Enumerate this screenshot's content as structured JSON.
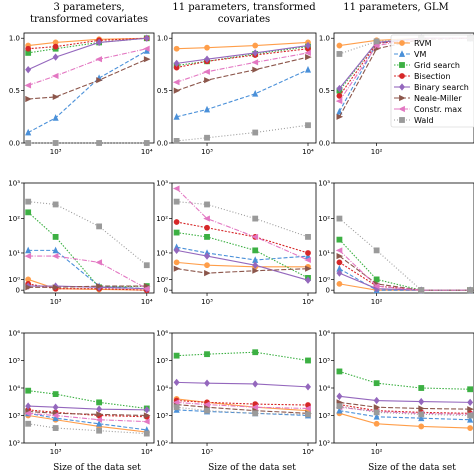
{
  "chart_data": {
    "type": "line",
    "x_axis_label": "Size of the data set",
    "column_titles": [
      [
        "3 parameters,",
        "transformed covariates"
      ],
      [
        "11 parameters, transformed",
        "covariates"
      ],
      [
        "11 parameters, GLM"
      ]
    ],
    "series_styles": [
      {
        "name": "RVM",
        "color": "#ff9e4a",
        "marker": "circle",
        "dash": ""
      },
      {
        "name": "VM",
        "color": "#4a90d9",
        "marker": "triangle",
        "dash": "4,2"
      },
      {
        "name": "Grid search",
        "color": "#3cb043",
        "marker": "square",
        "dash": "1.5,1.5"
      },
      {
        "name": "Bisection",
        "color": "#d62728",
        "marker": "circle",
        "dash": "2,1.5"
      },
      {
        "name": "Binary search",
        "color": "#9467bd",
        "marker": "diamond",
        "dash": ""
      },
      {
        "name": "Neale-Miller",
        "color": "#8c564b",
        "marker": "tri-right",
        "dash": "5,2"
      },
      {
        "name": "Constr. max",
        "color": "#e377c2",
        "marker": "tri-left",
        "dash": "5,1.5,1,1.5"
      },
      {
        "name": "Wald",
        "color": "#9a9a9a",
        "marker": "square-x",
        "dash": "1,2"
      }
    ],
    "legend": {
      "placement": "right",
      "entries": [
        "RVM",
        "VM",
        "Grid search",
        "Bisection",
        "Binary search",
        "Neale-Miller",
        "Constr. max",
        "Wald"
      ]
    },
    "panels": [
      {
        "row": 0,
        "col": 0,
        "yscale": "linear",
        "ylim": [
          0,
          1.05
        ],
        "xlim": [
          450,
          12000
        ],
        "yticks": [
          0,
          0.5,
          1.0
        ],
        "ytick_labels": [
          "0.0",
          "0.5",
          "1.0"
        ],
        "xticks": [
          1000,
          10000
        ],
        "xtick_labels": [
          "10³",
          "10⁴"
        ],
        "x": [
          500,
          1000,
          3000,
          10000
        ],
        "series": [
          {
            "name": "RVM",
            "values": [
              0.93,
              0.96,
              0.99,
              1.0
            ]
          },
          {
            "name": "VM",
            "values": [
              0.1,
              0.24,
              0.62,
              0.88
            ]
          },
          {
            "name": "Grid search",
            "values": [
              0.86,
              0.9,
              0.96,
              1.0
            ]
          },
          {
            "name": "Bisection",
            "values": [
              0.9,
              0.92,
              0.98,
              1.0
            ]
          },
          {
            "name": "Binary search",
            "values": [
              0.7,
              0.82,
              0.96,
              1.0
            ]
          },
          {
            "name": "Neale-Miller",
            "values": [
              0.42,
              0.44,
              0.6,
              0.8
            ]
          },
          {
            "name": "Constr. max",
            "values": [
              0.55,
              0.64,
              0.8,
              0.9
            ]
          },
          {
            "name": "Wald",
            "values": [
              0.0,
              0.0,
              0.0,
              0.0
            ]
          }
        ]
      },
      {
        "row": 0,
        "col": 1,
        "yscale": "linear",
        "ylim": [
          0,
          1.05
        ],
        "xlim": [
          450,
          12000
        ],
        "yticks": [
          0,
          0.5,
          1.0
        ],
        "ytick_labels": [
          "0.0",
          "0.5",
          "1.0"
        ],
        "xticks": [
          1000,
          10000
        ],
        "xtick_labels": [
          "10³",
          "10⁴"
        ],
        "x": [
          500,
          1000,
          3000,
          10000
        ],
        "series": [
          {
            "name": "RVM",
            "values": [
              0.9,
              0.91,
              0.93,
              0.96
            ]
          },
          {
            "name": "VM",
            "values": [
              0.25,
              0.32,
              0.47,
              0.7
            ]
          },
          {
            "name": "Grid search",
            "values": [
              0.74,
              0.78,
              0.85,
              0.92
            ]
          },
          {
            "name": "Bisection",
            "values": [
              0.72,
              0.78,
              0.84,
              0.9
            ]
          },
          {
            "name": "Binary search",
            "values": [
              0.76,
              0.8,
              0.86,
              0.93
            ]
          },
          {
            "name": "Neale-Miller",
            "values": [
              0.5,
              0.6,
              0.7,
              0.82
            ]
          },
          {
            "name": "Constr. max",
            "values": [
              0.58,
              0.68,
              0.77,
              0.86
            ]
          },
          {
            "name": "Wald",
            "values": [
              0.02,
              0.05,
              0.1,
              0.17
            ]
          }
        ]
      },
      {
        "row": 0,
        "col": 2,
        "yscale": "linear",
        "ylim": [
          0,
          1.05
        ],
        "xlim": [
          35,
          1100
        ],
        "yticks": [
          0,
          0.5,
          1.0
        ],
        "ytick_labels": [
          "0.0",
          "0.5",
          "1.0"
        ],
        "xticks": [
          100
        ],
        "xtick_labels": [
          "10²"
        ],
        "x": [
          40,
          100,
          300,
          1000
        ],
        "series": [
          {
            "name": "RVM",
            "values": [
              0.93,
              0.98,
              1.0,
              1.0
            ]
          },
          {
            "name": "VM",
            "values": [
              0.3,
              0.95,
              1.0,
              1.0
            ]
          },
          {
            "name": "Grid search",
            "values": [
              0.5,
              0.96,
              1.0,
              1.0
            ]
          },
          {
            "name": "Bisection",
            "values": [
              0.45,
              0.95,
              1.0,
              1.0
            ]
          },
          {
            "name": "Binary search",
            "values": [
              0.52,
              0.96,
              1.0,
              1.0
            ]
          },
          {
            "name": "Neale-Miller",
            "values": [
              0.25,
              0.9,
              0.99,
              1.0
            ]
          },
          {
            "name": "Constr. max",
            "values": [
              0.4,
              0.93,
              1.0,
              1.0
            ]
          },
          {
            "name": "Wald",
            "values": [
              0.85,
              0.97,
              1.0,
              1.0
            ]
          }
        ]
      },
      {
        "row": 1,
        "col": 0,
        "yscale": "symlog",
        "ylim": [
          -0.2,
          1000
        ],
        "xlim": [
          450,
          12000
        ],
        "yticks": [
          0,
          1,
          10,
          100,
          1000
        ],
        "ytick_labels": [
          "0",
          "10⁰",
          "10¹",
          "10²",
          "10³"
        ],
        "xticks": [
          1000,
          10000
        ],
        "xtick_labels": [
          "10³",
          "10⁴"
        ],
        "x": [
          500,
          1000,
          3000,
          10000
        ],
        "series": [
          {
            "name": "RVM",
            "values": [
              1.0,
              0.1,
              0.05,
              0.0
            ]
          },
          {
            "name": "VM",
            "values": [
              12,
              12,
              0.3,
              0.1
            ]
          },
          {
            "name": "Grid search",
            "values": [
              150,
              30,
              0.2,
              0.3
            ]
          },
          {
            "name": "Bisection",
            "values": [
              0.5,
              0.1,
              0.1,
              0.0
            ]
          },
          {
            "name": "Binary search",
            "values": [
              0.3,
              0.3,
              0.2,
              0.1
            ]
          },
          {
            "name": "Neale-Miller",
            "values": [
              0.2,
              0.2,
              0.3,
              0.3
            ]
          },
          {
            "name": "Constr. max",
            "values": [
              8,
              8,
              5,
              0.1
            ]
          },
          {
            "name": "Wald",
            "values": [
              300,
              250,
              60,
              4
            ]
          }
        ]
      },
      {
        "row": 1,
        "col": 1,
        "yscale": "symlog",
        "ylim": [
          -0.2,
          1000
        ],
        "xlim": [
          450,
          12000
        ],
        "yticks": [
          0,
          1,
          10,
          100,
          1000
        ],
        "ytick_labels": [
          "0",
          "10⁰",
          "10¹",
          "10²",
          "10³"
        ],
        "xticks": [
          1000,
          10000
        ],
        "xtick_labels": [
          "10³",
          "10⁴"
        ],
        "x": [
          500,
          1000,
          3000,
          10000
        ],
        "series": [
          {
            "name": "RVM",
            "values": [
              5,
              4,
              3.5,
              3.5
            ]
          },
          {
            "name": "VM",
            "values": [
              15,
              10,
              6,
              8
            ]
          },
          {
            "name": "Grid search",
            "values": [
              40,
              30,
              12,
              1.2
            ]
          },
          {
            "name": "Bisection",
            "values": [
              80,
              55,
              30,
              10
            ]
          },
          {
            "name": "Binary search",
            "values": [
              12,
              8,
              4,
              0.9
            ]
          },
          {
            "name": "Neale-Miller",
            "values": [
              3,
              2,
              2.5,
              3
            ]
          },
          {
            "name": "Constr. max",
            "values": [
              700,
              100,
              30,
              6
            ]
          },
          {
            "name": "Wald",
            "values": [
              300,
              250,
              100,
              30
            ]
          }
        ]
      },
      {
        "row": 1,
        "col": 2,
        "yscale": "symlog",
        "ylim": [
          -0.2,
          1000
        ],
        "xlim": [
          35,
          1100
        ],
        "yticks": [
          0,
          1,
          10,
          100,
          1000
        ],
        "ytick_labels": [
          "0",
          "10⁰",
          "10¹",
          "10²",
          "10³"
        ],
        "xticks": [
          100
        ],
        "xtick_labels": [
          "10²"
        ],
        "x": [
          40,
          100,
          300,
          1000
        ],
        "series": [
          {
            "name": "RVM",
            "values": [
              0.5,
              0.0,
              0.0,
              0.0
            ]
          },
          {
            "name": "VM",
            "values": [
              3,
              0.0,
              0.0,
              0.0
            ]
          },
          {
            "name": "Grid search",
            "values": [
              25,
              1,
              0.0,
              0.0
            ]
          },
          {
            "name": "Bisection",
            "values": [
              5,
              0.3,
              0.0,
              0.0
            ]
          },
          {
            "name": "Binary search",
            "values": [
              2,
              0.1,
              0.0,
              0.0
            ]
          },
          {
            "name": "Neale-Miller",
            "values": [
              8,
              0.5,
              0.0,
              0.0
            ]
          },
          {
            "name": "Constr. max",
            "values": [
              12,
              0.3,
              0.0,
              0.0
            ]
          },
          {
            "name": "Wald",
            "values": [
              100,
              12,
              0.0,
              0.0
            ]
          }
        ]
      },
      {
        "row": 2,
        "col": 0,
        "yscale": "log",
        "ylim": [
          100,
          1000000
        ],
        "xlim": [
          450,
          12000
        ],
        "yticks": [
          100,
          1000,
          10000,
          100000,
          1000000
        ],
        "ytick_labels": [
          "10²",
          "10³",
          "10⁴",
          "10⁵",
          "10⁶"
        ],
        "xticks": [
          1000,
          10000
        ],
        "xtick_labels": [
          "10³",
          "10⁴"
        ],
        "x": [
          500,
          1000,
          3000,
          10000
        ],
        "series": [
          {
            "name": "RVM",
            "values": [
              1000,
              700,
              400,
              250
            ]
          },
          {
            "name": "VM",
            "values": [
              1200,
              800,
              500,
              300
            ]
          },
          {
            "name": "Grid search",
            "values": [
              8000,
              6000,
              3000,
              1800
            ]
          },
          {
            "name": "Bisection",
            "values": [
              1600,
              1300,
              1000,
              900
            ]
          },
          {
            "name": "Binary search",
            "values": [
              2200,
              2000,
              1700,
              1600
            ]
          },
          {
            "name": "Neale-Miller",
            "values": [
              1400,
              1200,
              1100,
              1000
            ]
          },
          {
            "name": "Constr. max",
            "values": [
              1200,
              1000,
              700,
              600
            ]
          },
          {
            "name": "Wald",
            "values": [
              500,
              350,
              280,
              220
            ]
          }
        ]
      },
      {
        "row": 2,
        "col": 1,
        "yscale": "log",
        "ylim": [
          100,
          1000000
        ],
        "xlim": [
          450,
          12000
        ],
        "yticks": [
          100,
          1000,
          10000,
          100000,
          1000000
        ],
        "ytick_labels": [
          "10²",
          "10³",
          "10⁴",
          "10⁵",
          "10⁶"
        ],
        "xticks": [
          1000,
          10000
        ],
        "xtick_labels": [
          "10³",
          "10⁴"
        ],
        "x": [
          500,
          1000,
          3000,
          10000
        ],
        "series": [
          {
            "name": "RVM",
            "values": [
              4000,
              3000,
              2000,
              1500
            ]
          },
          {
            "name": "VM",
            "values": [
              1600,
              1400,
              1200,
              1000
            ]
          },
          {
            "name": "Grid search",
            "values": [
              150000,
              170000,
              200000,
              100000
            ]
          },
          {
            "name": "Bisection",
            "values": [
              3500,
              3000,
              2600,
              2400
            ]
          },
          {
            "name": "Binary search",
            "values": [
              16000,
              15000,
              14000,
              11000
            ]
          },
          {
            "name": "Neale-Miller",
            "values": [
              2500,
              2000,
              1500,
              1200
            ]
          },
          {
            "name": "Constr. max",
            "values": [
              3000,
              2500,
              2000,
              1800
            ]
          },
          {
            "name": "Wald",
            "values": [
              2000,
              1500,
              1200,
              1100
            ]
          }
        ]
      },
      {
        "row": 2,
        "col": 2,
        "yscale": "log",
        "ylim": [
          100,
          1000000
        ],
        "xlim": [
          35,
          1100
        ],
        "yticks": [
          100,
          1000,
          10000,
          100000,
          1000000
        ],
        "ytick_labels": [
          "10²",
          "10³",
          "10⁴",
          "10⁵",
          "10⁶"
        ],
        "xticks": [
          100
        ],
        "xtick_labels": [
          "10²"
        ],
        "x": [
          40,
          100,
          300,
          1000
        ],
        "series": [
          {
            "name": "RVM",
            "values": [
              1200,
              500,
              400,
              350
            ]
          },
          {
            "name": "VM",
            "values": [
              1500,
              900,
              800,
              700
            ]
          },
          {
            "name": "Grid search",
            "values": [
              40000,
              15000,
              10000,
              9000
            ]
          },
          {
            "name": "Bisection",
            "values": [
              2500,
              1500,
              1300,
              1200
            ]
          },
          {
            "name": "Binary search",
            "values": [
              5000,
              3500,
              3200,
              3000
            ]
          },
          {
            "name": "Neale-Miller",
            "values": [
              3000,
              2000,
              1800,
              1700
            ]
          },
          {
            "name": "Constr. max",
            "values": [
              2000,
              1400,
              1200,
              1100
            ]
          },
          {
            "name": "Wald",
            "values": [
              2200,
              1300,
              1100,
              1000
            ]
          }
        ]
      }
    ]
  }
}
